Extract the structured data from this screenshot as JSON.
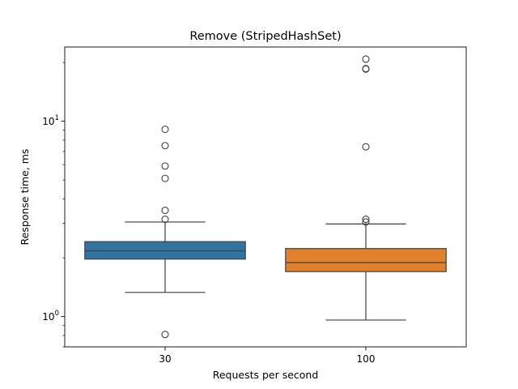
{
  "chart_data": {
    "type": "box",
    "title": "Remove (StripedHashSet)",
    "xlabel": "Requests per second",
    "ylabel": "Response time, ms",
    "yscale": "log",
    "ylim": [
      0.7,
      24
    ],
    "yticks": [
      {
        "value": 1,
        "base": "10",
        "exp": "0"
      },
      {
        "value": 10,
        "base": "10",
        "exp": "1"
      }
    ],
    "grid": false,
    "categories": [
      "30",
      "100"
    ],
    "boxes": [
      {
        "category": "30",
        "color": "#3274a1",
        "whisker_low": 1.33,
        "q1": 1.97,
        "median": 2.17,
        "q3": 2.42,
        "whisker_high": 3.05,
        "outliers": [
          0.81,
          3.15,
          3.5,
          5.1,
          5.9,
          7.5,
          9.1
        ]
      },
      {
        "category": "100",
        "color": "#e1812c",
        "whisker_low": 0.96,
        "q1": 1.7,
        "median": 1.89,
        "q3": 2.23,
        "whisker_high": 2.98,
        "outliers": [
          3.05,
          3.15,
          7.4,
          18.5,
          18.6,
          20.8
        ]
      }
    ]
  }
}
